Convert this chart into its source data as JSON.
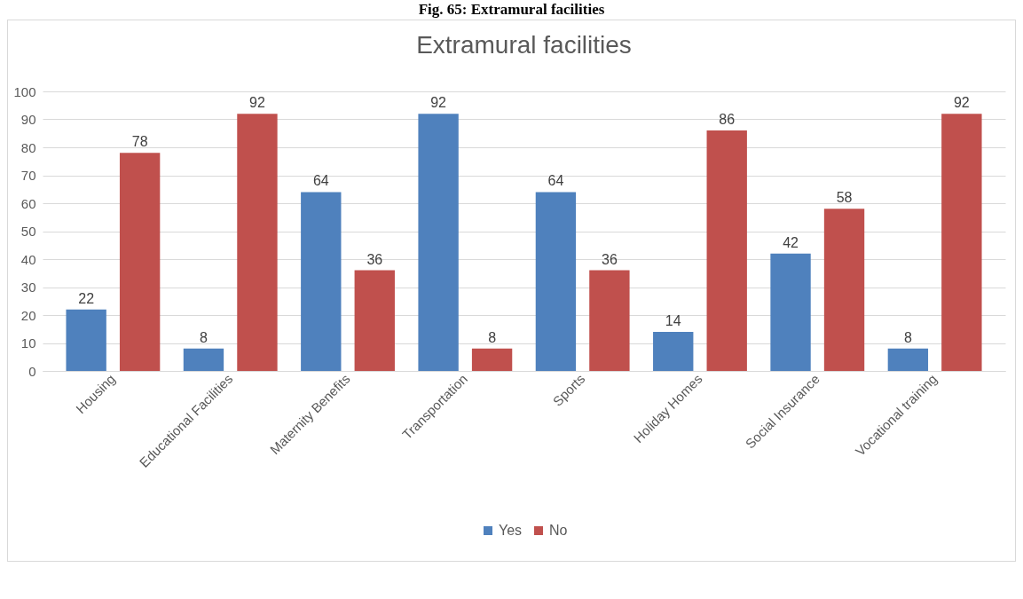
{
  "chart_data": {
    "type": "bar",
    "title": "Extramural facilities",
    "annotations": [
      "Fig. 65: Extramural facilities"
    ],
    "categories": [
      "Housing",
      "Educational Facilities",
      "Maternity Benefits",
      "Transportation",
      "Sports",
      "Holiday Homes",
      "Social Insurance",
      "Vocational training"
    ],
    "series": [
      {
        "name": "Yes",
        "color": "#4f81bd",
        "values": [
          22,
          8,
          64,
          92,
          64,
          14,
          42,
          8
        ]
      },
      {
        "name": "No",
        "color": "#c0504d",
        "values": [
          78,
          92,
          36,
          8,
          36,
          86,
          58,
          92
        ]
      }
    ],
    "ylim": [
      0,
      100
    ],
    "yticks": [
      0,
      10,
      20,
      30,
      40,
      50,
      60,
      70,
      80,
      90,
      100
    ],
    "grid": "y",
    "legend": "bottom",
    "data_labels": true
  }
}
